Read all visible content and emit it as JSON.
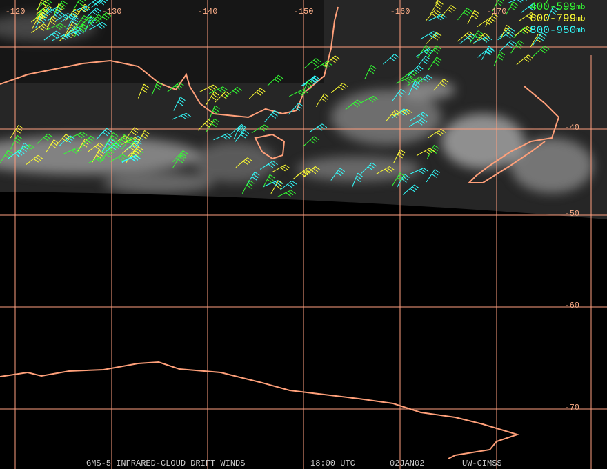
{
  "map": {
    "longitude_labels": [
      "-120",
      "-130",
      "-140",
      "-150",
      "-160",
      "-170"
    ],
    "latitude_labels": [
      "-40",
      "-50",
      "-60",
      "-70"
    ],
    "legend": [
      {
        "range": "400-599",
        "unit": "mb",
        "color": "#33ff33"
      },
      {
        "range": "600-799",
        "unit": "mb",
        "color": "#ffff33"
      },
      {
        "range": "800-950",
        "unit": "mb",
        "color": "#33ffff"
      }
    ],
    "footer": {
      "product": "GMS-5 INFRARED-CLOUD DRIFT WINDS",
      "time": "18:00 UTC",
      "date": "02JAN02",
      "source": "UW-CIMSS"
    }
  }
}
